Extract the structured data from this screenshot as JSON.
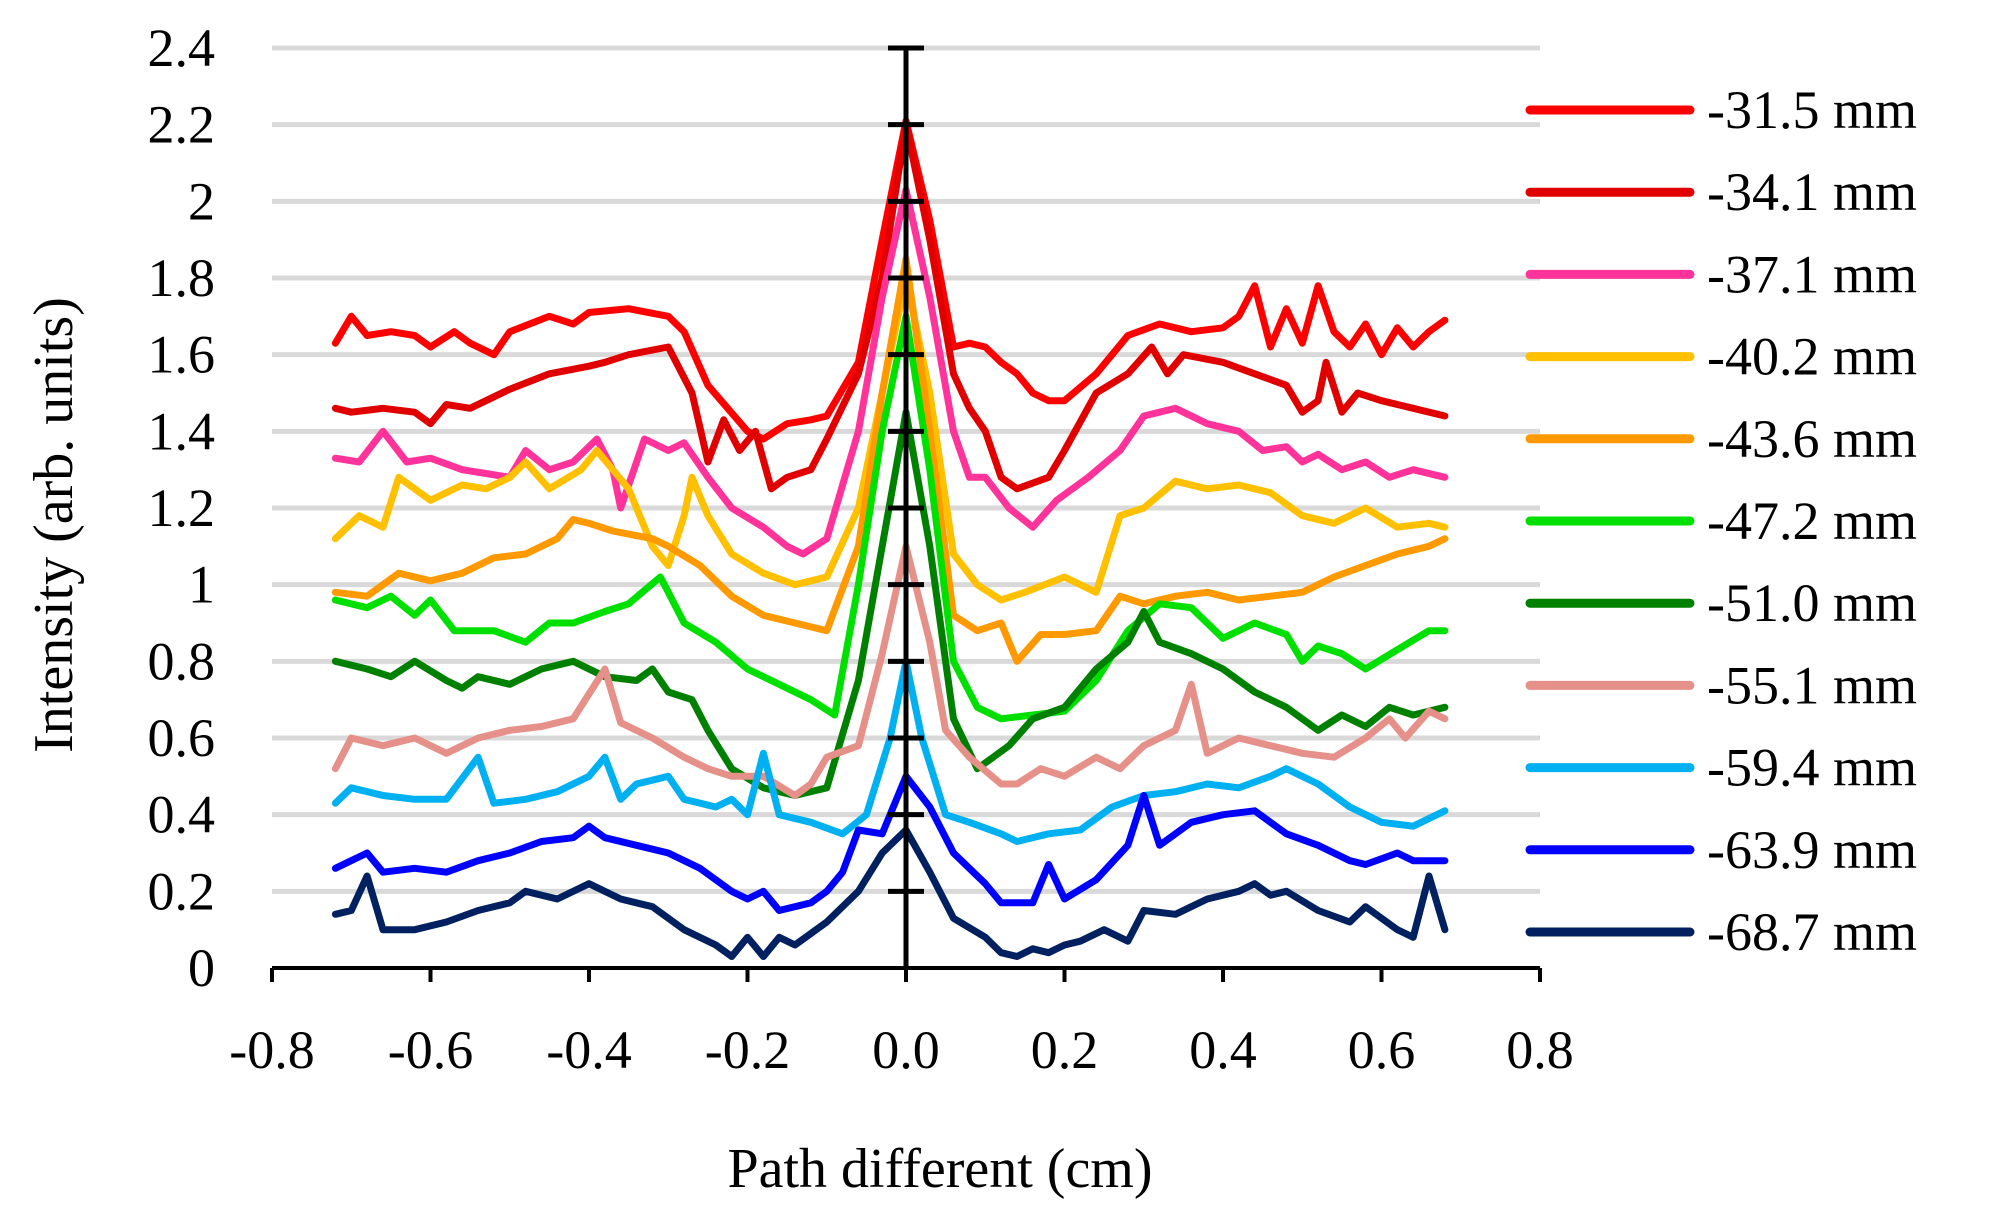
{
  "chart_data": {
    "type": "line",
    "title": "",
    "xlabel": "Path different (cm)",
    "ylabel": "Intensity (arb. units)",
    "xlim": [
      -0.8,
      0.8
    ],
    "ylim": [
      0,
      2.4
    ],
    "x_ticks": [
      -0.8,
      -0.6,
      -0.4,
      -0.2,
      0.0,
      0.2,
      0.4,
      0.6,
      0.8
    ],
    "x_tick_labels": [
      "-0.8",
      "-0.6",
      "-0.4",
      "-0.2",
      "0.0",
      "0.2",
      "0.4",
      "0.6",
      "0.8"
    ],
    "y_ticks": [
      0,
      0.2,
      0.4,
      0.6,
      0.8,
      1,
      1.2,
      1.4,
      1.6,
      1.8,
      2,
      2.2,
      2.4
    ],
    "y_tick_labels": [
      "0",
      "0.2",
      "0.4",
      "0.6",
      "0.8",
      "1",
      "1.2",
      "1.4",
      "1.6",
      "1.8",
      "2",
      "2.2",
      "2.4"
    ],
    "grid": "horizontal",
    "legend_position": "right",
    "error_bar": {
      "x": 0.0,
      "low": 0,
      "high": 2.4
    },
    "series": [
      {
        "name": "-31.5 mm",
        "color": "#FF0000",
        "x": [
          -0.72,
          -0.7,
          -0.68,
          -0.65,
          -0.62,
          -0.6,
          -0.57,
          -0.55,
          -0.52,
          -0.5,
          -0.45,
          -0.42,
          -0.4,
          -0.35,
          -0.3,
          -0.28,
          -0.25,
          -0.2,
          -0.18,
          -0.15,
          -0.12,
          -0.1,
          -0.06,
          -0.03,
          0.0,
          0.03,
          0.06,
          0.08,
          0.1,
          0.12,
          0.14,
          0.16,
          0.18,
          0.2,
          0.24,
          0.28,
          0.32,
          0.36,
          0.4,
          0.42,
          0.44,
          0.46,
          0.48,
          0.5,
          0.52,
          0.54,
          0.56,
          0.58,
          0.6,
          0.62,
          0.64,
          0.66,
          0.68
        ],
        "y": [
          1.63,
          1.7,
          1.65,
          1.66,
          1.65,
          1.62,
          1.66,
          1.63,
          1.6,
          1.66,
          1.7,
          1.68,
          1.71,
          1.72,
          1.7,
          1.66,
          1.52,
          1.4,
          1.38,
          1.42,
          1.43,
          1.44,
          1.58,
          1.9,
          2.21,
          1.95,
          1.62,
          1.63,
          1.62,
          1.58,
          1.55,
          1.5,
          1.48,
          1.48,
          1.55,
          1.65,
          1.68,
          1.66,
          1.67,
          1.7,
          1.78,
          1.62,
          1.72,
          1.63,
          1.78,
          1.66,
          1.62,
          1.68,
          1.6,
          1.67,
          1.62,
          1.66,
          1.69
        ]
      },
      {
        "name": "-34.1 mm",
        "color": "#E00000",
        "x": [
          -0.72,
          -0.7,
          -0.66,
          -0.62,
          -0.6,
          -0.58,
          -0.55,
          -0.5,
          -0.45,
          -0.4,
          -0.38,
          -0.35,
          -0.3,
          -0.27,
          -0.25,
          -0.23,
          -0.21,
          -0.19,
          -0.17,
          -0.15,
          -0.12,
          -0.1,
          -0.06,
          -0.03,
          0.0,
          0.03,
          0.06,
          0.08,
          0.1,
          0.12,
          0.14,
          0.18,
          0.2,
          0.24,
          0.28,
          0.31,
          0.33,
          0.35,
          0.4,
          0.44,
          0.48,
          0.5,
          0.52,
          0.53,
          0.55,
          0.57,
          0.6,
          0.64,
          0.68
        ],
        "y": [
          1.46,
          1.45,
          1.46,
          1.45,
          1.42,
          1.47,
          1.46,
          1.51,
          1.55,
          1.57,
          1.58,
          1.6,
          1.62,
          1.5,
          1.32,
          1.43,
          1.35,
          1.4,
          1.25,
          1.28,
          1.3,
          1.38,
          1.55,
          1.8,
          2.2,
          1.9,
          1.55,
          1.46,
          1.4,
          1.28,
          1.25,
          1.28,
          1.35,
          1.5,
          1.55,
          1.62,
          1.55,
          1.6,
          1.58,
          1.55,
          1.52,
          1.45,
          1.48,
          1.58,
          1.45,
          1.5,
          1.48,
          1.46,
          1.44
        ]
      },
      {
        "name": "-37.1 mm",
        "color": "#FF3399",
        "x": [
          -0.72,
          -0.69,
          -0.66,
          -0.63,
          -0.6,
          -0.56,
          -0.5,
          -0.48,
          -0.45,
          -0.42,
          -0.39,
          -0.37,
          -0.36,
          -0.33,
          -0.3,
          -0.28,
          -0.25,
          -0.22,
          -0.18,
          -0.15,
          -0.13,
          -0.1,
          -0.06,
          -0.03,
          0.0,
          0.03,
          0.06,
          0.08,
          0.1,
          0.13,
          0.16,
          0.19,
          0.23,
          0.27,
          0.3,
          0.34,
          0.38,
          0.42,
          0.45,
          0.48,
          0.5,
          0.52,
          0.55,
          0.58,
          0.61,
          0.64,
          0.68
        ],
        "y": [
          1.33,
          1.32,
          1.4,
          1.32,
          1.33,
          1.3,
          1.28,
          1.35,
          1.3,
          1.32,
          1.38,
          1.3,
          1.2,
          1.38,
          1.35,
          1.37,
          1.28,
          1.2,
          1.15,
          1.1,
          1.08,
          1.12,
          1.4,
          1.75,
          2.03,
          1.75,
          1.4,
          1.28,
          1.28,
          1.2,
          1.15,
          1.22,
          1.28,
          1.35,
          1.44,
          1.46,
          1.42,
          1.4,
          1.35,
          1.36,
          1.32,
          1.34,
          1.3,
          1.32,
          1.28,
          1.3,
          1.28
        ]
      },
      {
        "name": "-40.2 mm",
        "color": "#FFC000",
        "x": [
          -0.72,
          -0.69,
          -0.66,
          -0.64,
          -0.6,
          -0.56,
          -0.53,
          -0.5,
          -0.48,
          -0.45,
          -0.41,
          -0.39,
          -0.35,
          -0.32,
          -0.3,
          -0.28,
          -0.27,
          -0.25,
          -0.22,
          -0.18,
          -0.14,
          -0.1,
          -0.06,
          -0.03,
          0.0,
          0.03,
          0.06,
          0.09,
          0.12,
          0.15,
          0.2,
          0.24,
          0.27,
          0.3,
          0.34,
          0.38,
          0.42,
          0.46,
          0.5,
          0.54,
          0.58,
          0.62,
          0.66,
          0.68
        ],
        "y": [
          1.12,
          1.18,
          1.15,
          1.28,
          1.22,
          1.26,
          1.25,
          1.28,
          1.32,
          1.25,
          1.3,
          1.35,
          1.25,
          1.1,
          1.05,
          1.18,
          1.28,
          1.18,
          1.08,
          1.03,
          1.0,
          1.02,
          1.2,
          1.5,
          1.8,
          1.5,
          1.08,
          1.0,
          0.96,
          0.98,
          1.02,
          0.98,
          1.18,
          1.2,
          1.27,
          1.25,
          1.26,
          1.24,
          1.18,
          1.16,
          1.2,
          1.15,
          1.16,
          1.15
        ]
      },
      {
        "name": "-43.6 mm",
        "color": "#FF9900",
        "x": [
          -0.72,
          -0.68,
          -0.64,
          -0.6,
          -0.56,
          -0.52,
          -0.48,
          -0.44,
          -0.42,
          -0.4,
          -0.37,
          -0.32,
          -0.3,
          -0.26,
          -0.22,
          -0.18,
          -0.14,
          -0.1,
          -0.06,
          -0.03,
          0.0,
          0.03,
          0.06,
          0.09,
          0.12,
          0.14,
          0.17,
          0.2,
          0.24,
          0.27,
          0.3,
          0.34,
          0.38,
          0.42,
          0.46,
          0.5,
          0.54,
          0.58,
          0.62,
          0.66,
          0.68
        ],
        "y": [
          0.98,
          0.97,
          1.03,
          1.01,
          1.03,
          1.07,
          1.08,
          1.12,
          1.17,
          1.16,
          1.14,
          1.12,
          1.1,
          1.05,
          0.97,
          0.92,
          0.9,
          0.88,
          1.1,
          1.5,
          1.85,
          1.4,
          0.92,
          0.88,
          0.9,
          0.8,
          0.87,
          0.87,
          0.88,
          0.97,
          0.95,
          0.97,
          0.98,
          0.96,
          0.97,
          0.98,
          1.02,
          1.05,
          1.08,
          1.1,
          1.12
        ]
      },
      {
        "name": "-47.2 mm",
        "color": "#00E000",
        "x": [
          -0.72,
          -0.68,
          -0.65,
          -0.62,
          -0.6,
          -0.57,
          -0.52,
          -0.48,
          -0.45,
          -0.42,
          -0.38,
          -0.35,
          -0.31,
          -0.3,
          -0.28,
          -0.24,
          -0.2,
          -0.16,
          -0.12,
          -0.09,
          -0.06,
          -0.03,
          0.0,
          0.03,
          0.06,
          0.09,
          0.12,
          0.16,
          0.2,
          0.24,
          0.28,
          0.32,
          0.36,
          0.4,
          0.44,
          0.48,
          0.5,
          0.52,
          0.55,
          0.58,
          0.62,
          0.66,
          0.68
        ],
        "y": [
          0.96,
          0.94,
          0.97,
          0.92,
          0.96,
          0.88,
          0.88,
          0.85,
          0.9,
          0.9,
          0.93,
          0.95,
          1.02,
          0.98,
          0.9,
          0.85,
          0.78,
          0.74,
          0.7,
          0.66,
          1.0,
          1.4,
          1.7,
          1.3,
          0.8,
          0.68,
          0.65,
          0.66,
          0.67,
          0.75,
          0.88,
          0.95,
          0.94,
          0.86,
          0.9,
          0.87,
          0.8,
          0.84,
          0.82,
          0.78,
          0.83,
          0.88,
          0.88
        ]
      },
      {
        "name": "-51.0 mm",
        "color": "#008000",
        "x": [
          -0.72,
          -0.68,
          -0.65,
          -0.62,
          -0.58,
          -0.56,
          -0.54,
          -0.5,
          -0.46,
          -0.42,
          -0.38,
          -0.34,
          -0.32,
          -0.3,
          -0.27,
          -0.25,
          -0.22,
          -0.18,
          -0.14,
          -0.1,
          -0.06,
          -0.03,
          0.0,
          0.03,
          0.06,
          0.09,
          0.11,
          0.13,
          0.16,
          0.2,
          0.24,
          0.28,
          0.3,
          0.32,
          0.36,
          0.4,
          0.44,
          0.48,
          0.52,
          0.55,
          0.58,
          0.61,
          0.64,
          0.68
        ],
        "y": [
          0.8,
          0.78,
          0.76,
          0.8,
          0.75,
          0.73,
          0.76,
          0.74,
          0.78,
          0.8,
          0.76,
          0.75,
          0.78,
          0.72,
          0.7,
          0.62,
          0.52,
          0.47,
          0.45,
          0.47,
          0.75,
          1.1,
          1.45,
          1.1,
          0.65,
          0.52,
          0.55,
          0.58,
          0.65,
          0.68,
          0.78,
          0.85,
          0.93,
          0.85,
          0.82,
          0.78,
          0.72,
          0.68,
          0.62,
          0.66,
          0.63,
          0.68,
          0.66,
          0.68
        ]
      },
      {
        "name": "-55.1 mm",
        "color": "#E6908A",
        "x": [
          -0.72,
          -0.7,
          -0.66,
          -0.62,
          -0.58,
          -0.54,
          -0.5,
          -0.46,
          -0.42,
          -0.38,
          -0.36,
          -0.32,
          -0.28,
          -0.25,
          -0.22,
          -0.18,
          -0.14,
          -0.12,
          -0.1,
          -0.06,
          -0.03,
          0.0,
          0.03,
          0.05,
          0.08,
          0.12,
          0.14,
          0.17,
          0.2,
          0.24,
          0.27,
          0.3,
          0.34,
          0.36,
          0.38,
          0.42,
          0.46,
          0.5,
          0.54,
          0.58,
          0.61,
          0.63,
          0.66,
          0.68
        ],
        "y": [
          0.52,
          0.6,
          0.58,
          0.6,
          0.56,
          0.6,
          0.62,
          0.63,
          0.65,
          0.78,
          0.64,
          0.6,
          0.55,
          0.52,
          0.5,
          0.5,
          0.45,
          0.48,
          0.55,
          0.58,
          0.82,
          1.1,
          0.85,
          0.62,
          0.55,
          0.48,
          0.48,
          0.52,
          0.5,
          0.55,
          0.52,
          0.58,
          0.62,
          0.74,
          0.56,
          0.6,
          0.58,
          0.56,
          0.55,
          0.6,
          0.65,
          0.6,
          0.67,
          0.65
        ]
      },
      {
        "name": "-59.4 mm",
        "color": "#00B0F0",
        "x": [
          -0.72,
          -0.7,
          -0.66,
          -0.62,
          -0.58,
          -0.54,
          -0.52,
          -0.48,
          -0.44,
          -0.4,
          -0.38,
          -0.36,
          -0.34,
          -0.3,
          -0.28,
          -0.24,
          -0.22,
          -0.2,
          -0.18,
          -0.16,
          -0.12,
          -0.08,
          -0.05,
          -0.02,
          0.0,
          0.02,
          0.05,
          0.08,
          0.12,
          0.14,
          0.18,
          0.22,
          0.26,
          0.3,
          0.34,
          0.38,
          0.42,
          0.46,
          0.48,
          0.52,
          0.56,
          0.6,
          0.64,
          0.68
        ],
        "y": [
          0.43,
          0.47,
          0.45,
          0.44,
          0.44,
          0.55,
          0.43,
          0.44,
          0.46,
          0.5,
          0.55,
          0.44,
          0.48,
          0.5,
          0.44,
          0.42,
          0.44,
          0.4,
          0.56,
          0.4,
          0.38,
          0.35,
          0.4,
          0.6,
          0.8,
          0.6,
          0.4,
          0.38,
          0.35,
          0.33,
          0.35,
          0.36,
          0.42,
          0.45,
          0.46,
          0.48,
          0.47,
          0.5,
          0.52,
          0.48,
          0.42,
          0.38,
          0.37,
          0.41
        ]
      },
      {
        "name": "-63.9 mm",
        "color": "#0000FF",
        "x": [
          -0.72,
          -0.68,
          -0.66,
          -0.62,
          -0.58,
          -0.54,
          -0.5,
          -0.46,
          -0.42,
          -0.4,
          -0.38,
          -0.34,
          -0.3,
          -0.26,
          -0.22,
          -0.2,
          -0.18,
          -0.16,
          -0.12,
          -0.1,
          -0.08,
          -0.06,
          -0.03,
          0.0,
          0.03,
          0.06,
          0.1,
          0.12,
          0.16,
          0.18,
          0.2,
          0.24,
          0.28,
          0.3,
          0.32,
          0.36,
          0.4,
          0.44,
          0.48,
          0.52,
          0.56,
          0.58,
          0.62,
          0.64,
          0.68
        ],
        "y": [
          0.26,
          0.3,
          0.25,
          0.26,
          0.25,
          0.28,
          0.3,
          0.33,
          0.34,
          0.37,
          0.34,
          0.32,
          0.3,
          0.26,
          0.2,
          0.18,
          0.2,
          0.15,
          0.17,
          0.2,
          0.25,
          0.36,
          0.35,
          0.5,
          0.42,
          0.3,
          0.22,
          0.17,
          0.17,
          0.27,
          0.18,
          0.23,
          0.32,
          0.45,
          0.32,
          0.38,
          0.4,
          0.41,
          0.35,
          0.32,
          0.28,
          0.27,
          0.3,
          0.28,
          0.28
        ]
      },
      {
        "name": "-68.7 mm",
        "color": "#002060",
        "x": [
          -0.72,
          -0.7,
          -0.68,
          -0.66,
          -0.62,
          -0.58,
          -0.54,
          -0.5,
          -0.48,
          -0.44,
          -0.4,
          -0.36,
          -0.32,
          -0.28,
          -0.24,
          -0.22,
          -0.2,
          -0.18,
          -0.16,
          -0.14,
          -0.1,
          -0.06,
          -0.03,
          0.0,
          0.03,
          0.06,
          0.1,
          0.12,
          0.14,
          0.16,
          0.18,
          0.2,
          0.22,
          0.25,
          0.28,
          0.3,
          0.34,
          0.38,
          0.42,
          0.44,
          0.46,
          0.48,
          0.52,
          0.56,
          0.58,
          0.62,
          0.64,
          0.66,
          0.68
        ],
        "y": [
          0.14,
          0.15,
          0.24,
          0.1,
          0.1,
          0.12,
          0.15,
          0.17,
          0.2,
          0.18,
          0.22,
          0.18,
          0.16,
          0.1,
          0.06,
          0.03,
          0.08,
          0.03,
          0.08,
          0.06,
          0.12,
          0.2,
          0.3,
          0.36,
          0.25,
          0.13,
          0.08,
          0.04,
          0.03,
          0.05,
          0.04,
          0.06,
          0.07,
          0.1,
          0.07,
          0.15,
          0.14,
          0.18,
          0.2,
          0.22,
          0.19,
          0.2,
          0.15,
          0.12,
          0.16,
          0.1,
          0.08,
          0.24,
          0.1
        ]
      }
    ]
  }
}
